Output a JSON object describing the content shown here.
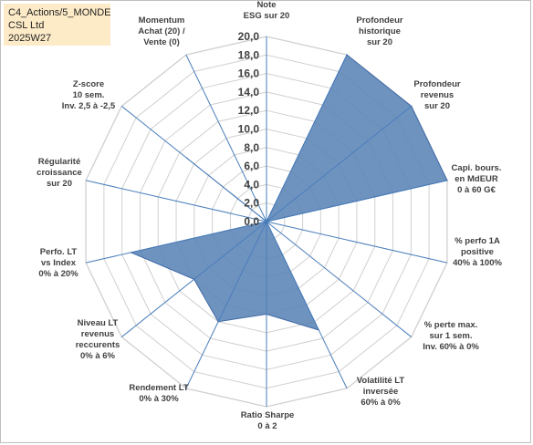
{
  "header": {
    "line1": "C4_Actions/5_MONDE",
    "line2": "CSL Ltd",
    "line3": "2025W27"
  },
  "chart_data": {
    "type": "radar",
    "title": "",
    "rmin": 0,
    "rmax": 20,
    "ticks": [
      "0,0",
      "2,0",
      "4,0",
      "6,0",
      "8,0",
      "10,0",
      "12,0",
      "14,0",
      "16,0",
      "18,0",
      "20,0"
    ],
    "axes": [
      [
        "Note",
        "ESG sur 20"
      ],
      [
        "Profondeur",
        "historique",
        "sur 20"
      ],
      [
        "Profondeur",
        "revenus",
        "sur 20"
      ],
      [
        "Capi. bours.",
        "en MdEUR",
        "0 à 60 G€"
      ],
      [
        "% perfo 1A",
        "positive",
        "40% à 100%"
      ],
      [
        "% perte max.",
        "sur 1 sem.",
        "Inv. 60% à 0%"
      ],
      [
        "Volatilité LT",
        "inversée",
        "60% à 0%"
      ],
      [
        "Ratio Sharpe",
        "0 à 2"
      ],
      [
        "Rendement LT",
        "0% à 30%"
      ],
      [
        "Niveau LT",
        "revenus",
        "reccurents",
        "0% à 6%"
      ],
      [
        "Perfo. LT",
        "vs Index",
        "0% à 20%"
      ],
      [
        "Régularité",
        "croissance",
        "sur 20"
      ],
      [
        "Z-score",
        "10 sem.",
        "Inv. 2,5 à -2,5"
      ],
      [
        "Momentum",
        "Achat (20) /",
        "Vente (0)"
      ]
    ],
    "series": [
      {
        "values": [
          0,
          20,
          20,
          20,
          0,
          0,
          13,
          10,
          12,
          10,
          15,
          0,
          11,
          0
        ]
      }
    ],
    "grid": true,
    "colors": {
      "fill": "#5b84b6",
      "stroke": "#3f6aa8",
      "grid": "#d0d0d0",
      "spoke": "#4a7ebb"
    }
  }
}
